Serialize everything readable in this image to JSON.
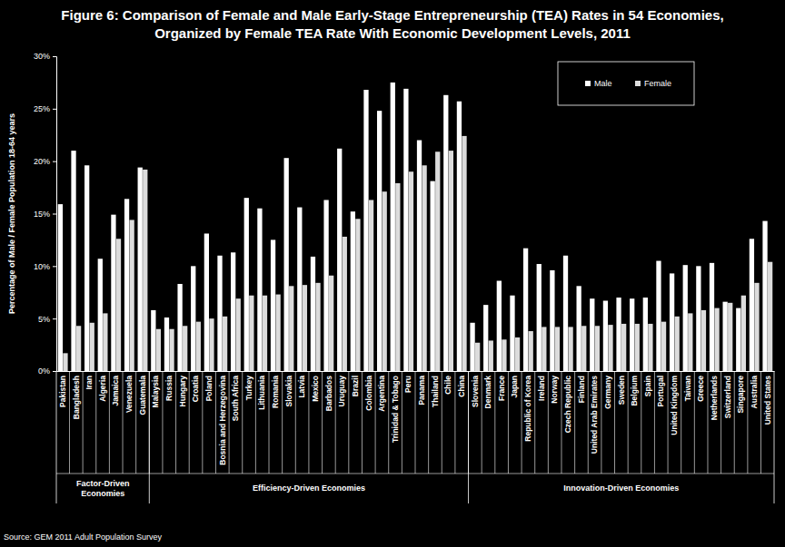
{
  "chart_data": {
    "type": "bar",
    "title": "Figure 6: Comparison of Female and Male Early-Stage Entrepreneurship (TEA) Rates in 54 Economies, Organized by Female TEA Rate With Economic Development Levels, 2011",
    "y_label": "Percentage of Male / Female Population 18-64 years",
    "annotations": [
      "Source: GEM 2011 Adult Population Survey"
    ],
    "categories": [
      "Pakistan",
      "Bangladesh",
      "Iran",
      "Algeria",
      "Jamaica",
      "Venezuela",
      "Guatemala",
      "Malaysia",
      "Russia",
      "Hungary",
      "Croatia",
      "Poland",
      "Bosnia and Herzegovina",
      "South Africa",
      "Turkey",
      "Lithuania",
      "Romania",
      "Slovakia",
      "Latvia",
      "Mexico",
      "Barbados",
      "Uruguay",
      "Brazil",
      "Colombia",
      "Argentina",
      "Trinidad & Tobago",
      "Peru",
      "Panama",
      "Thailand",
      "Chile",
      "China",
      "Slovenia",
      "Denmark",
      "France",
      "Japan",
      "Republic of Korea",
      "Ireland",
      "Norway",
      "Czech Republic",
      "Finland",
      "United Arab Emirates",
      "Germany",
      "Sweden",
      "Belgium",
      "Spain",
      "Portugal",
      "United Kingdom",
      "Taiwan",
      "Greece",
      "Netherlands",
      "Switzerland",
      "Singapore",
      "Australia",
      "United States"
    ],
    "groups": [
      {
        "name": "Factor-Driven Economies",
        "count": 7
      },
      {
        "name": "Efficiency-Driven Economies",
        "count": 24
      },
      {
        "name": "Innovation-Driven Economies",
        "count": 23
      }
    ],
    "series": [
      {
        "name": "Male",
        "color": "#ffffff",
        "values": [
          15.9,
          21.0,
          19.6,
          10.7,
          14.9,
          16.4,
          19.4,
          5.8,
          5.1,
          8.3,
          10.0,
          13.1,
          11.0,
          11.3,
          16.5,
          15.5,
          12.5,
          20.3,
          15.6,
          10.9,
          16.3,
          21.2,
          15.2,
          26.8,
          24.8,
          27.5,
          26.9,
          22.0,
          18.1,
          26.3,
          25.7,
          4.6,
          6.3,
          8.6,
          7.2,
          11.7,
          10.2,
          9.6,
          11.0,
          8.1,
          6.9,
          6.7,
          7.0,
          6.9,
          7.0,
          10.5,
          9.3,
          10.1,
          10.0,
          10.3,
          6.6,
          6.0,
          12.6,
          14.3
        ]
      },
      {
        "name": "Female",
        "color": "#dcdcdc",
        "values": [
          1.7,
          4.3,
          4.6,
          5.5,
          12.6,
          14.4,
          19.2,
          4.0,
          4.0,
          4.3,
          4.7,
          5.0,
          5.2,
          6.9,
          7.2,
          7.2,
          7.3,
          8.1,
          8.2,
          8.4,
          9.1,
          12.8,
          14.5,
          16.3,
          17.1,
          17.9,
          19.0,
          19.6,
          20.9,
          21.0,
          22.4,
          2.7,
          2.9,
          3.0,
          3.2,
          3.8,
          4.2,
          4.2,
          4.2,
          4.3,
          4.3,
          4.4,
          4.5,
          4.5,
          4.5,
          4.7,
          5.2,
          5.5,
          5.8,
          6.0,
          6.5,
          7.2,
          8.4,
          10.4
        ]
      }
    ],
    "ylim": [
      0,
      30
    ],
    "yticks": [
      {
        "value": 0,
        "label": "0%"
      },
      {
        "value": 5,
        "label": "5%"
      },
      {
        "value": 10,
        "label": "10%"
      },
      {
        "value": 15,
        "label": "15%"
      },
      {
        "value": 20,
        "label": "20%"
      },
      {
        "value": 25,
        "label": "25%"
      },
      {
        "value": 30,
        "label": "30%"
      }
    ],
    "legend": "top-right",
    "grid": false
  }
}
